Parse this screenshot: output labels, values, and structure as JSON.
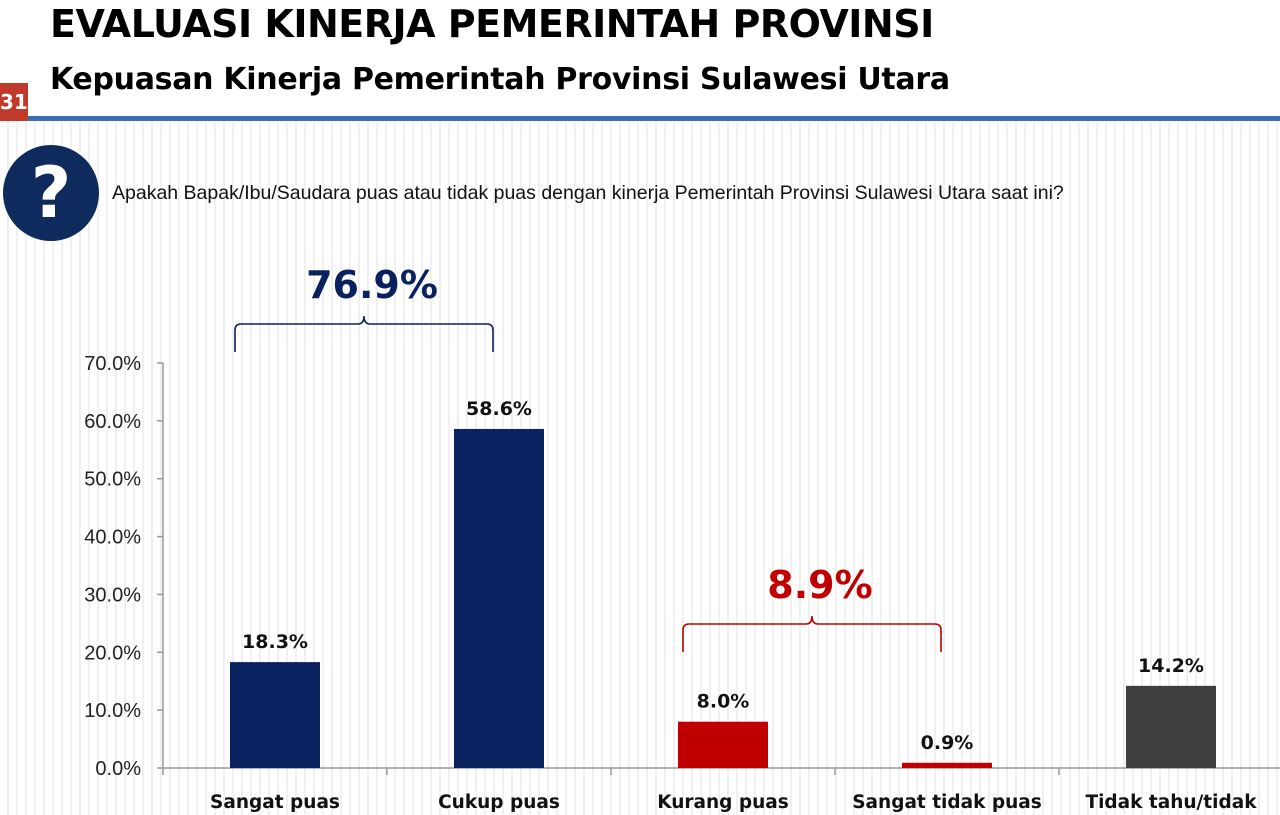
{
  "header": {
    "title": "EVALUASI KINERJA PEMERINTAH PROVINSI",
    "subtitle": "Kepuasan Kinerja Pemerintah Provinsi Sulawesi Utara",
    "page_number": "31"
  },
  "question": {
    "icon": "question-mark-icon",
    "text": "Apakah Bapak/Ibu/Saudara puas atau tidak puas dengan kinerja Pemerintah Provinsi Sulawesi Utara saat ini?"
  },
  "colors": {
    "satisfied": "#0a2160",
    "dissatisfied": "#c00000",
    "unknown": "#404040",
    "accent_rule": "#3a6fb0",
    "badge": "#c0392b"
  },
  "chart_data": {
    "type": "bar",
    "title": "",
    "xlabel": "",
    "ylabel": "",
    "categories": [
      "Sangat puas",
      "Cukup puas",
      "Kurang puas",
      "Sangat tidak puas",
      "Tidak tahu/tidak"
    ],
    "values": [
      18.3,
      58.6,
      8.0,
      0.9,
      14.2
    ],
    "value_labels": [
      "18.3%",
      "58.6%",
      "8.0%",
      "0.9%",
      "14.2%"
    ],
    "bar_groups": [
      "satisfied",
      "satisfied",
      "dissatisfied",
      "dissatisfied",
      "unknown"
    ],
    "ylim": [
      0,
      70
    ],
    "yticks": [
      0,
      10,
      20,
      30,
      40,
      50,
      60,
      70
    ],
    "ytick_labels": [
      "0.0%",
      "10.0%",
      "20.0%",
      "30.0%",
      "40.0%",
      "50.0%",
      "60.0%",
      "70.0%"
    ],
    "grid": false,
    "annotations": [
      {
        "label": "76.9%",
        "from": 0,
        "to": 1,
        "group": "satisfied"
      },
      {
        "label": "8.9%",
        "from": 2,
        "to": 3,
        "group": "dissatisfied"
      }
    ]
  }
}
